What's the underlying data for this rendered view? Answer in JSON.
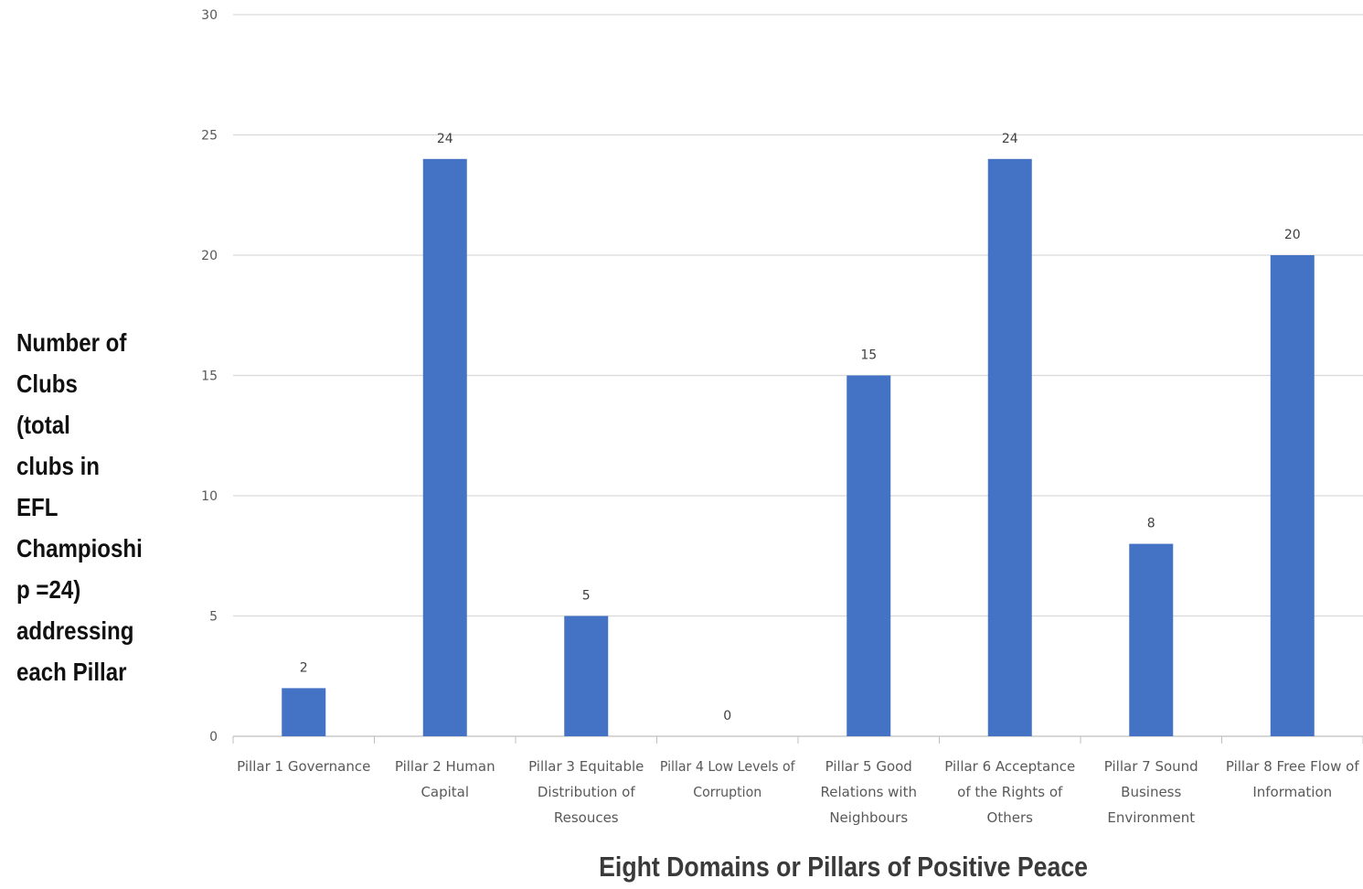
{
  "chart_data": {
    "type": "bar",
    "title": "",
    "xlabel": "Eight Domains or Pillars of Positive Peace",
    "ylabel": "Number of Clubs (total clubs in EFL Champioship =24) addressing each Pillar",
    "ylim": [
      0,
      30
    ],
    "yticks": [
      "0",
      "5",
      "10",
      "15",
      "20",
      "25",
      "30"
    ],
    "grid": true,
    "legend": "none",
    "bar_color": "#4472C4",
    "categories": [
      "Pillar 1 Governance",
      "Pillar 2 Human Capital",
      "Pillar 3 Equitable Distribution of Resouces",
      "Pillar 4 Low Levels of Corruption",
      "Pillar 5 Good Relations with Neighbours",
      "Pillar 6 Acceptance of the Rights of Others",
      "Pillar 7 Sound Business Environment",
      "Pillar 8 Free Flow of Information"
    ],
    "category_lines": [
      [
        "Pillar 1 Governance"
      ],
      [
        "Pillar 2 Human",
        "Capital"
      ],
      [
        "Pillar 3 Equitable",
        "Distribution of",
        "Resouces"
      ],
      [
        "Pillar 4 Low Levels of",
        "Corruption"
      ],
      [
        "Pillar 5 Good",
        "Relations with",
        "Neighbours"
      ],
      [
        "Pillar 6 Acceptance",
        "of the Rights of",
        "Others"
      ],
      [
        "Pillar 7 Sound",
        "Business",
        "Environment"
      ],
      [
        "Pillar 8 Free Flow of",
        "Information"
      ]
    ],
    "values": [
      2,
      24,
      5,
      0,
      15,
      24,
      8,
      20
    ],
    "data_labels": [
      "2",
      "24",
      "5",
      "0",
      "15",
      "24",
      "8",
      "20"
    ]
  },
  "ylabel_lines": "Number of\nClubs (total\nclubs in EFL\nChampioshi\np =24)\naddressing\neach Pillar"
}
